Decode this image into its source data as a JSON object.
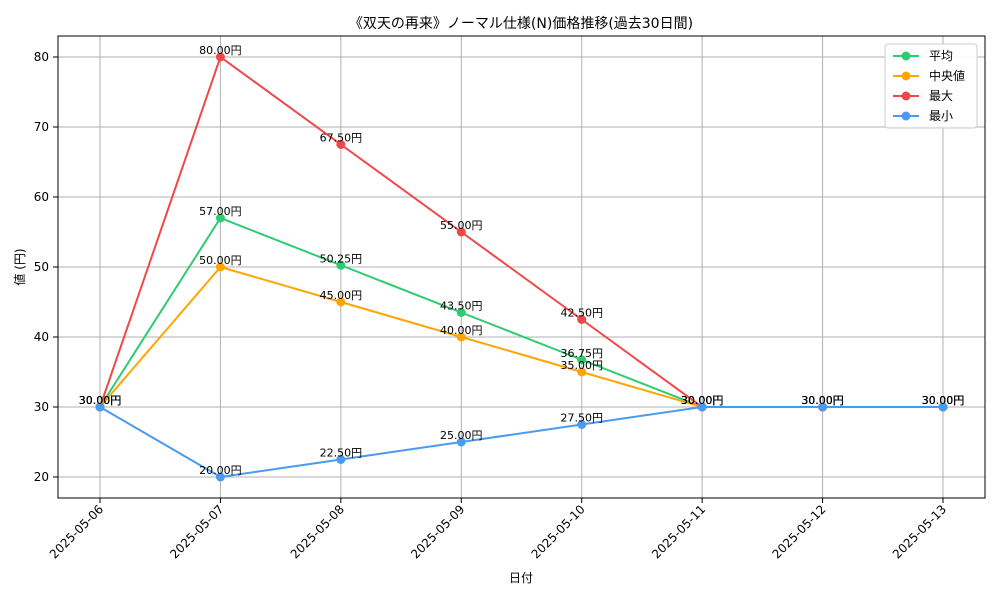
{
  "chart_data": {
    "type": "line",
    "title": "《双天の再来》ノーマル仕様(N)価格推移(過去30日間)",
    "xlabel": "日付",
    "ylabel": "値 (円)",
    "categories": [
      "2025-05-06",
      "2025-05-07",
      "2025-05-08",
      "2025-05-09",
      "2025-05-10",
      "2025-05-11",
      "2025-05-12",
      "2025-05-13"
    ],
    "ylim": [
      17,
      83
    ],
    "yticks": [
      20,
      30,
      40,
      50,
      60,
      70,
      80
    ],
    "grid": true,
    "legend_position": "top-right",
    "value_suffix": "円",
    "series": [
      {
        "name": "平均",
        "color": "#2ecc71",
        "values": [
          30.0,
          57.0,
          50.25,
          43.5,
          36.75,
          30.0,
          30.0,
          30.0
        ]
      },
      {
        "name": "中央値",
        "color": "#ffa500",
        "values": [
          30.0,
          50.0,
          45.0,
          40.0,
          35.0,
          30.0,
          30.0,
          30.0
        ]
      },
      {
        "name": "最大",
        "color": "#f04848",
        "values": [
          30.0,
          80.0,
          67.5,
          55.0,
          42.5,
          30.0,
          30.0,
          30.0
        ]
      },
      {
        "name": "最小",
        "color": "#4a9af0",
        "values": [
          30.0,
          20.0,
          22.5,
          25.0,
          27.5,
          30.0,
          30.0,
          30.0
        ]
      }
    ]
  }
}
